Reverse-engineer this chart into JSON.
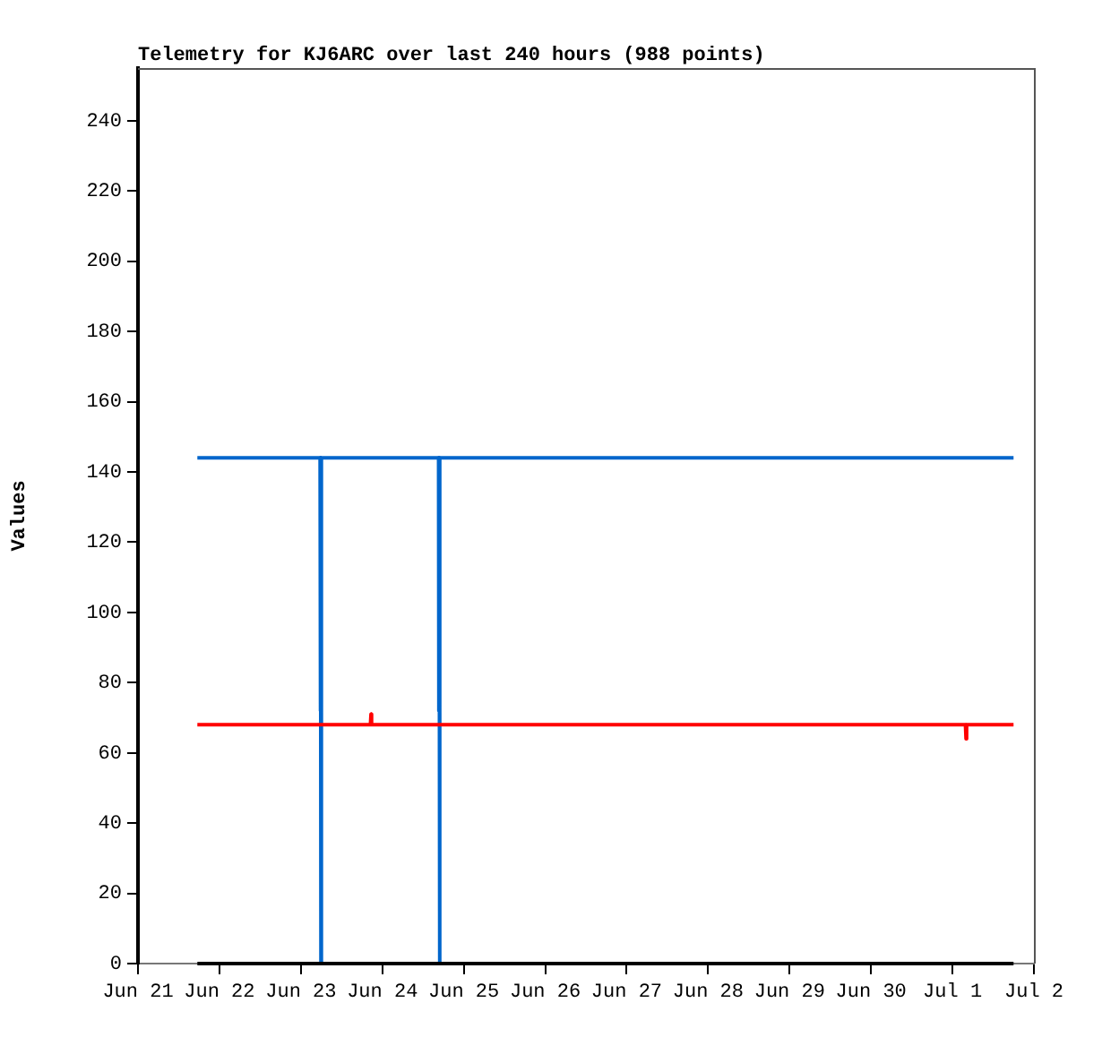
{
  "chart_data": {
    "type": "line",
    "title": "Telemetry for KJ6ARC over last 240 hours (988 points)",
    "ylabel": "Values",
    "xlim": [
      "--06-21",
      "--07-02"
    ],
    "xticks": [
      {
        "value": "--06-21",
        "label": "Jun 21"
      },
      {
        "value": "--06-22",
        "label": "Jun 22"
      },
      {
        "value": "--06-23",
        "label": "Jun 23"
      },
      {
        "value": "--06-24",
        "label": "Jun 24"
      },
      {
        "value": "--06-25",
        "label": "Jun 25"
      },
      {
        "value": "--06-26",
        "label": "Jun 26"
      },
      {
        "value": "--06-27",
        "label": "Jun 27"
      },
      {
        "value": "--06-28",
        "label": "Jun 28"
      },
      {
        "value": "--06-29",
        "label": "Jun 29"
      },
      {
        "value": "--06-30",
        "label": "Jun 30"
      },
      {
        "value": "--07-01",
        "label": "Jul 1"
      },
      {
        "value": "--07-02",
        "label": "Jul 2"
      }
    ],
    "ylim": [
      0,
      255
    ],
    "yticks": [
      0,
      20,
      40,
      60,
      80,
      100,
      120,
      140,
      160,
      180,
      200,
      220,
      240
    ],
    "grid": false,
    "legend": false,
    "marker": "none",
    "line_style": "solid",
    "series": [
      {
        "color": "#000000",
        "x": [
          "--06-21T17:30",
          "--07-01T18:00"
        ],
        "values": [
          0,
          0
        ]
      },
      {
        "color": "#ff0000",
        "x": [
          "--06-21T17:30",
          "--06-23T20:30",
          "--06-23T20:40",
          "--06-23T20:50",
          "--07-01T03:50",
          "--07-01T04:00",
          "--07-01T04:10",
          "--07-01T18:00"
        ],
        "values": [
          68,
          68,
          71,
          68,
          68,
          64,
          68,
          68
        ]
      },
      {
        "color": "#0066cc",
        "x": [
          "--06-21T17:30",
          "--06-23T05:40",
          "--06-23T05:45",
          "--06-23T05:50",
          "--06-23T05:55",
          "--06-23T06:00",
          "--06-23T06:05",
          "--06-24T16:35",
          "--06-24T16:40",
          "--06-24T16:45",
          "--06-24T16:50",
          "--06-24T16:55",
          "--06-24T17:00",
          "--07-01T18:00"
        ],
        "values": [
          144,
          144,
          72,
          144,
          0,
          72,
          144,
          144,
          72,
          144,
          0,
          72,
          144,
          144
        ]
      }
    ]
  }
}
